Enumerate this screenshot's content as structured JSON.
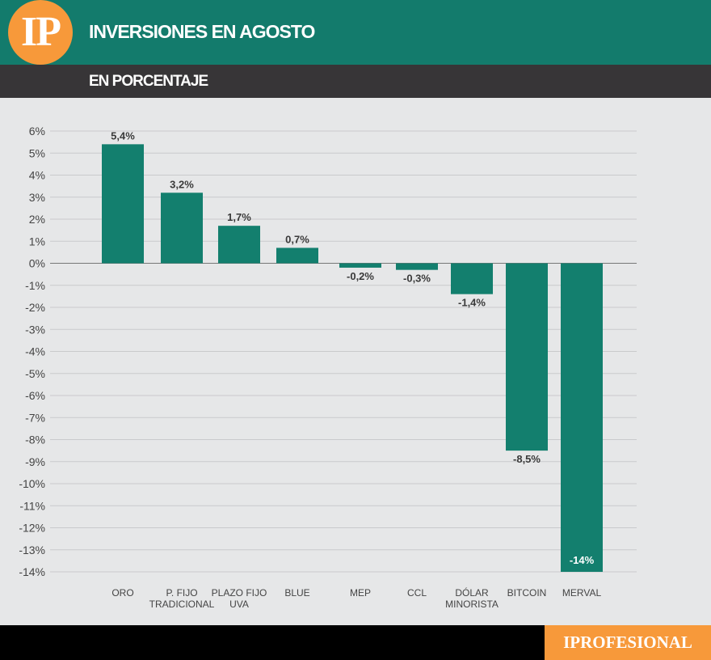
{
  "header": {
    "logo": "IP",
    "title": "INVERSIONES EN AGOSTO",
    "subtitle": "EN PORCENTAJE"
  },
  "footer": {
    "brand": "IPROFESIONAL"
  },
  "colors": {
    "bar": "#137f6e",
    "header": "#137b6c",
    "subheader": "#373537",
    "accent": "#f7993a",
    "background": "#e6e7e8"
  },
  "chart_data": {
    "type": "bar",
    "title": "INVERSIONES EN AGOSTO",
    "subtitle": "EN PORCENTAJE",
    "categories": [
      [
        "ORO"
      ],
      [
        "P. FIJO",
        "TRADICIONAL"
      ],
      [
        "PLAZO  FIJO",
        "UVA"
      ],
      [
        "BLUE"
      ],
      [
        "MEP"
      ],
      [
        "CCL"
      ],
      [
        "DÓLAR",
        "MINORISTA"
      ],
      [
        "BITCOIN"
      ],
      [
        "MERVAL"
      ]
    ],
    "values": [
      5.4,
      3.2,
      1.7,
      0.7,
      -0.2,
      -0.3,
      -1.4,
      -8.5,
      -14
    ],
    "data_labels": [
      "5,4%",
      "3,2%",
      "1,7%",
      "0,7%",
      "-0,2%",
      "-0,3%",
      "-1,4%",
      "-8,5%",
      "-14%"
    ],
    "ylim": [
      -14,
      6
    ],
    "yticks": [
      6,
      5,
      4,
      3,
      2,
      1,
      0,
      -1,
      -2,
      -3,
      -4,
      -5,
      -6,
      -7,
      -8,
      -9,
      -10,
      -11,
      -12,
      -13,
      -14
    ],
    "ytick_labels": [
      "6%",
      "5%",
      "4%",
      "3%",
      "2%",
      "1%",
      "0%",
      "-1%",
      "-2%",
      "-3%",
      "-4%",
      "-5%",
      "-6%",
      "-7%",
      "-8%",
      "-9%",
      "-10%",
      "-11%",
      "-12%",
      "-13%",
      "-14%"
    ],
    "grid": true,
    "legend": "none"
  }
}
